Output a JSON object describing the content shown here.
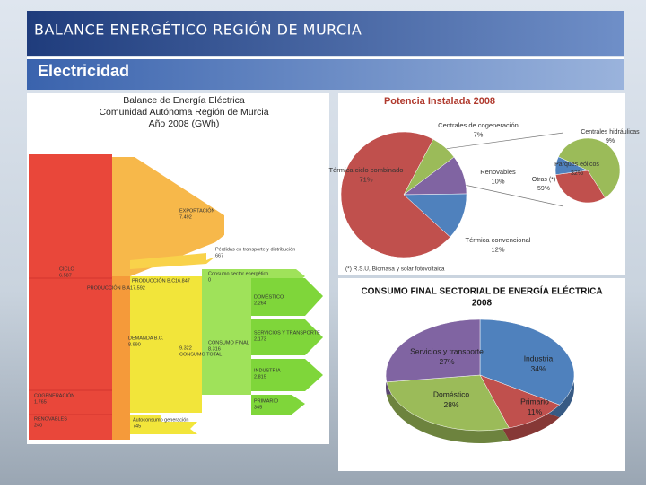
{
  "header": {
    "title": "BALANCE ENERGÉTICO REGIÓN DE MURCIA",
    "subtitle": "Electricidad"
  },
  "sankey": {
    "title": [
      "Balance de Energía Eléctrica",
      "Comunidad Autónoma Región de Murcia",
      "Año 2008 (GWh)"
    ],
    "nodes": [
      {
        "label": "CICLO",
        "value": "6.587"
      },
      {
        "label": "PRODUCCIÓN B.A.",
        "value": "17.592"
      },
      {
        "label": "PRODUCCIÓN B.C.",
        "value": "16.847"
      },
      {
        "label": "EXPORTACIÓN",
        "value": "7.492"
      },
      {
        "label": "Pérdidas en transporte y distribución",
        "value": "667"
      },
      {
        "label": "Consumo sector energético",
        "value": "0"
      },
      {
        "label": "DEMANDA B.C.",
        "value": "8.990"
      },
      {
        "label": "CONSUMO TOTAL",
        "value": "9.322"
      },
      {
        "label": "CONSUMO FINAL",
        "value": "8.316"
      },
      {
        "label": "DOMÉSTICO",
        "value": "2.264"
      },
      {
        "label": "SERVICIOS Y TRANSPORTE",
        "value": "2.173"
      },
      {
        "label": "INDUSTRIA",
        "value": "2.815"
      },
      {
        "label": "PRIMARIO",
        "value": "345"
      },
      {
        "label": "COGENERACIÓN",
        "value": "1.765"
      },
      {
        "label": "RENOVABLES",
        "value": "240"
      },
      {
        "label": "Autoconsumo generación",
        "value": "745"
      }
    ]
  },
  "chart_data": [
    {
      "type": "pie",
      "title": "Potencia Instalada 2008",
      "categories": [
        "Centrales de cogeneración",
        "Renovables",
        "Térmica convencional",
        "Térmica ciclo combinado"
      ],
      "values": [
        7,
        10,
        12,
        71
      ],
      "value_labels": [
        "7%",
        "10%",
        "12%",
        "71%"
      ],
      "colors": [
        "#9bbb59",
        "#8064a2",
        "#4f81bd",
        "#c0504d"
      ],
      "annotation": "(*) R.S.U, Biomasa y solar fotovoltaica"
    },
    {
      "type": "pie",
      "categories": [
        "Otras (*)",
        "Parques eólicos",
        "Centrales hidráulicas"
      ],
      "values": [
        59,
        32,
        9
      ],
      "value_labels": [
        "59%",
        "32%",
        "9%"
      ],
      "colors": [
        "#9bbb59",
        "#c0504d",
        "#4f81bd"
      ]
    },
    {
      "type": "pie3d",
      "title": "CONSUMO FINAL SECTORIAL DE ENERGÍA ELÉCTRICA",
      "subtitle": "2008",
      "categories": [
        "Industria",
        "Primario",
        "Doméstico",
        "Servicios y transporte"
      ],
      "values": [
        34,
        11,
        28,
        27
      ],
      "value_labels": [
        "34%",
        "11%",
        "28%",
        "27%"
      ],
      "colors": [
        "#4f81bd",
        "#c0504d",
        "#9bbb59",
        "#8064a2"
      ]
    }
  ]
}
